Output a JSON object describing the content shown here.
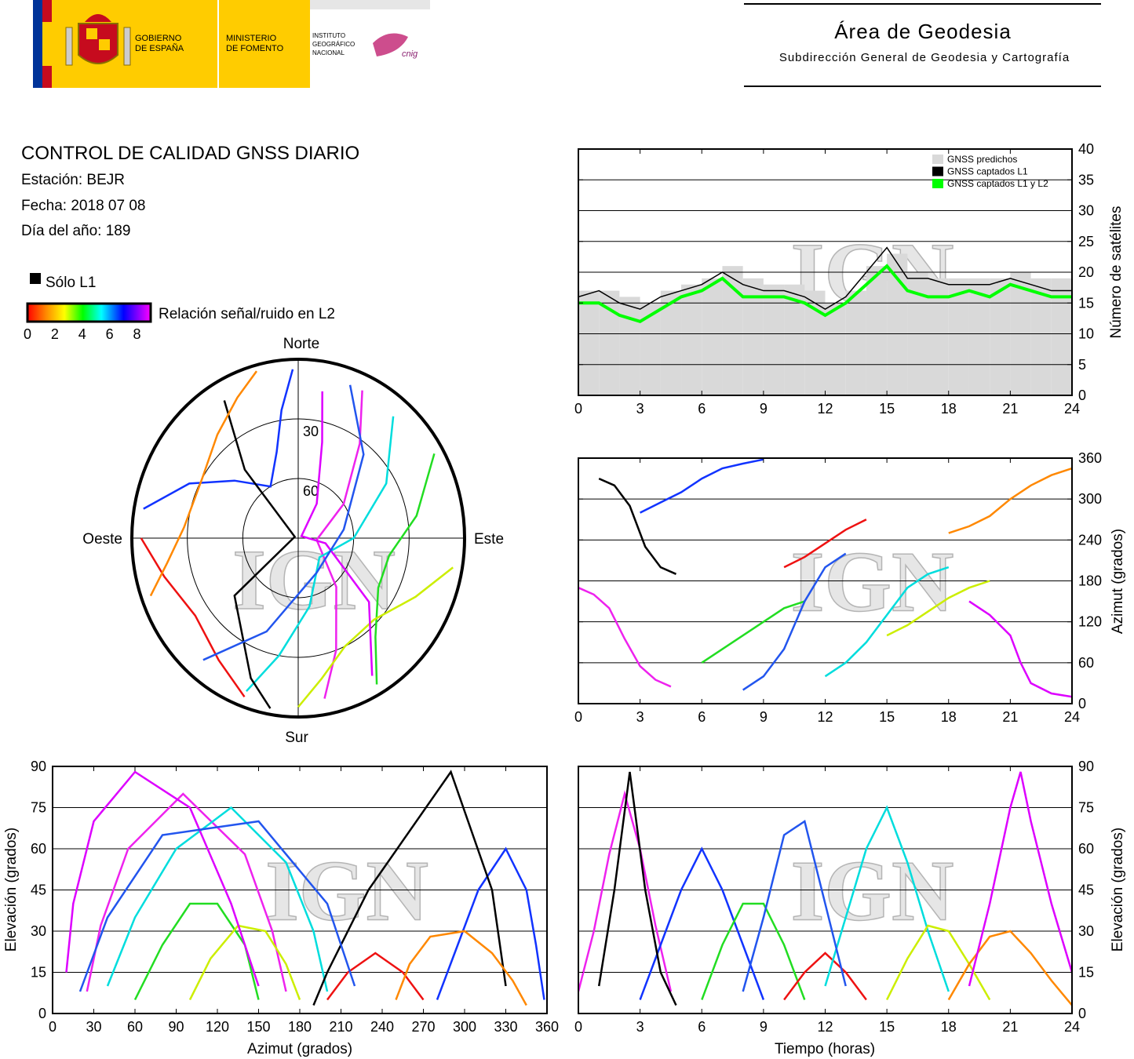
{
  "header": {
    "gobierno": [
      "GOBIERNO",
      "DE ESPAÑA"
    ],
    "ministerio": [
      "MINISTERIO",
      "DE FOMENTO"
    ],
    "instituto": [
      "INSTITUTO",
      "GEOGRÁFICO",
      "NACIONAL"
    ],
    "cnig": "cnig",
    "area_title": "Área de Geodesia",
    "area_subtitle": "Subdirección General de Geodesia y Cartografía"
  },
  "report": {
    "title": "CONTROL DE CALIDAD GNSS DIARIO",
    "station": "Estación: BEJR",
    "date": "Fecha: 2018 07 08",
    "doy": "Día del año: 189",
    "legend_l1": "Sólo L1",
    "legend_snr": "Relación señal/ruido en L2",
    "snr_lim": [
      0,
      9
    ],
    "snr_ticks": [
      0,
      2,
      4,
      6,
      8
    ],
    "watermark": "IGN"
  },
  "chart_data": [
    {
      "type": "step",
      "x": [
        0,
        1,
        2,
        3,
        4,
        5,
        6,
        7,
        8,
        9,
        10,
        11,
        12,
        13,
        14,
        15,
        16,
        17,
        18,
        19,
        20,
        21,
        22,
        23,
        24
      ],
      "xlim": [
        0,
        24
      ],
      "xticks": [
        0,
        3,
        6,
        9,
        12,
        15,
        18,
        21,
        24
      ],
      "ylim": [
        0,
        40
      ],
      "yticks": [
        0,
        5,
        10,
        15,
        20,
        25,
        30,
        35,
        40
      ],
      "ylabel": "Número de satélites",
      "grid": true,
      "legend": "upper right",
      "series": [
        {
          "name": "GNSS predichos",
          "color": "#d9d9d9",
          "fill": true,
          "values": [
            17,
            17,
            16,
            15,
            17,
            18,
            19,
            21,
            19,
            18,
            18,
            17,
            15,
            17,
            21,
            23,
            20,
            19,
            19,
            19,
            19,
            20,
            19,
            19,
            18
          ]
        },
        {
          "name": "GNSS captados L1",
          "color": "#000000",
          "values": [
            16,
            17,
            15,
            14,
            16,
            17,
            18,
            20,
            18,
            17,
            17,
            16,
            14,
            16,
            20,
            24,
            19,
            19,
            18,
            18,
            18,
            19,
            18,
            17,
            17
          ]
        },
        {
          "name": "GNSS captados L1 y L2",
          "color": "#00ff00",
          "values": [
            15,
            15,
            13,
            12,
            14,
            16,
            17,
            19,
            16,
            16,
            16,
            15,
            13,
            15,
            18,
            21,
            17,
            16,
            16,
            17,
            16,
            18,
            17,
            16,
            16
          ]
        }
      ]
    },
    {
      "type": "tracks",
      "polar": {
        "north": "Norte",
        "east": "Este",
        "south": "Sur",
        "west": "Oeste",
        "rticks": [
          30,
          60
        ]
      },
      "time_axis": {
        "label": "Tiempo (horas)",
        "lim": [
          0,
          24
        ],
        "ticks": [
          0,
          3,
          6,
          9,
          12,
          15,
          18,
          21,
          24
        ]
      },
      "azimuth_axis": {
        "label": "Azimut (grados)",
        "lim": [
          0,
          360
        ],
        "yticks": [
          0,
          60,
          120,
          180,
          240,
          300,
          360
        ],
        "xticks": [
          0,
          30,
          60,
          90,
          120,
          150,
          180,
          210,
          240,
          270,
          300,
          330,
          360
        ]
      },
      "elevation_axis": {
        "label": "Elevación (grados)",
        "lim": [
          0,
          90
        ],
        "ticks": [
          0,
          15,
          30,
          45,
          60,
          75,
          90
        ]
      },
      "series": [
        {
          "color": "#ee22ee",
          "time": [
            0,
            0.75,
            1.5,
            2.25,
            3,
            3.75,
            4.5
          ],
          "azimuth": [
            170,
            160,
            140,
            95,
            55,
            35,
            25
          ],
          "elevation": [
            8,
            30,
            58,
            80,
            60,
            32,
            8
          ]
        },
        {
          "color": "#1133ff",
          "time": [
            3,
            4,
            5,
            6,
            7,
            8,
            9
          ],
          "azimuth": [
            280,
            295,
            310,
            330,
            345,
            352,
            358
          ],
          "elevation": [
            5,
            25,
            45,
            60,
            45,
            25,
            5
          ]
        },
        {
          "color": "#22dd22",
          "time": [
            6,
            7,
            8,
            9,
            10,
            11
          ],
          "azimuth": [
            60,
            80,
            100,
            120,
            140,
            150
          ],
          "elevation": [
            5,
            25,
            40,
            40,
            25,
            5
          ]
        },
        {
          "color": "#ee1111",
          "time": [
            10,
            11,
            12,
            13,
            14
          ],
          "azimuth": [
            200,
            215,
            235,
            255,
            270
          ],
          "elevation": [
            5,
            15,
            22,
            15,
            5
          ]
        },
        {
          "color": "#00dddd",
          "time": [
            12,
            13,
            14,
            15,
            16,
            17,
            18
          ],
          "azimuth": [
            40,
            60,
            90,
            130,
            170,
            190,
            200
          ],
          "elevation": [
            10,
            35,
            60,
            75,
            55,
            30,
            8
          ]
        },
        {
          "color": "#000000",
          "time": [
            1,
            1.75,
            2.5,
            3.25,
            4,
            4.75
          ],
          "azimuth": [
            330,
            320,
            290,
            230,
            200,
            190
          ],
          "elevation": [
            10,
            45,
            88,
            45,
            15,
            3
          ]
        },
        {
          "color": "#ccee00",
          "time": [
            15,
            16,
            17,
            18,
            19,
            20
          ],
          "azimuth": [
            100,
            115,
            135,
            155,
            170,
            180
          ],
          "elevation": [
            5,
            20,
            32,
            30,
            18,
            5
          ]
        },
        {
          "color": "#ff8800",
          "time": [
            18,
            19,
            20,
            21,
            22,
            23,
            24
          ],
          "azimuth": [
            250,
            260,
            275,
            300,
            320,
            335,
            345
          ],
          "elevation": [
            5,
            18,
            28,
            30,
            22,
            12,
            3
          ]
        },
        {
          "color": "#dd00ff",
          "time": [
            19,
            20,
            21,
            21.5,
            22,
            23,
            24
          ],
          "azimuth": [
            150,
            130,
            100,
            60,
            30,
            15,
            10
          ],
          "elevation": [
            10,
            40,
            75,
            88,
            70,
            40,
            15
          ]
        },
        {
          "color": "#2255ee",
          "time": [
            8,
            9,
            10,
            11,
            12,
            13
          ],
          "azimuth": [
            20,
            40,
            80,
            150,
            200,
            220
          ],
          "elevation": [
            8,
            35,
            65,
            70,
            40,
            10
          ]
        }
      ]
    }
  ]
}
